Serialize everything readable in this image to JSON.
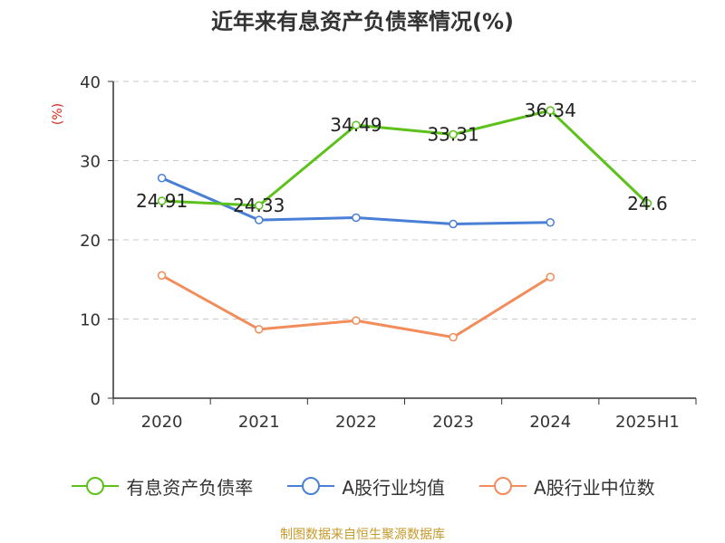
{
  "title": "近年来有息资产负债率情况(%)",
  "source": "制图数据来自恒生聚源数据库",
  "chart_data": {
    "type": "line",
    "title": "近年来有息资产负债率情况(%)",
    "ylabel": "(%)",
    "xlabel": "",
    "ylim": [
      0,
      40
    ],
    "yticks": [
      0,
      10,
      20,
      30,
      40
    ],
    "grid": true,
    "legend": "bottom",
    "categories": [
      "2020",
      "2021",
      "2022",
      "2023",
      "2024",
      "2025H1"
    ],
    "series": [
      {
        "name": "有息资产负债率",
        "color": "#5cc21b",
        "values": [
          24.91,
          24.33,
          34.49,
          33.31,
          36.34,
          24.6
        ],
        "labels": [
          "24.91",
          "24.33",
          "34.49",
          "33.31",
          "36.34",
          "24.6"
        ]
      },
      {
        "name": "A股行业均值",
        "color": "#4a7fd6",
        "values": [
          27.8,
          22.5,
          22.8,
          22.0,
          22.2,
          null
        ]
      },
      {
        "name": "A股行业中位数",
        "color": "#f28c5a",
        "values": [
          15.5,
          8.7,
          9.8,
          7.7,
          15.3,
          null
        ]
      }
    ]
  }
}
